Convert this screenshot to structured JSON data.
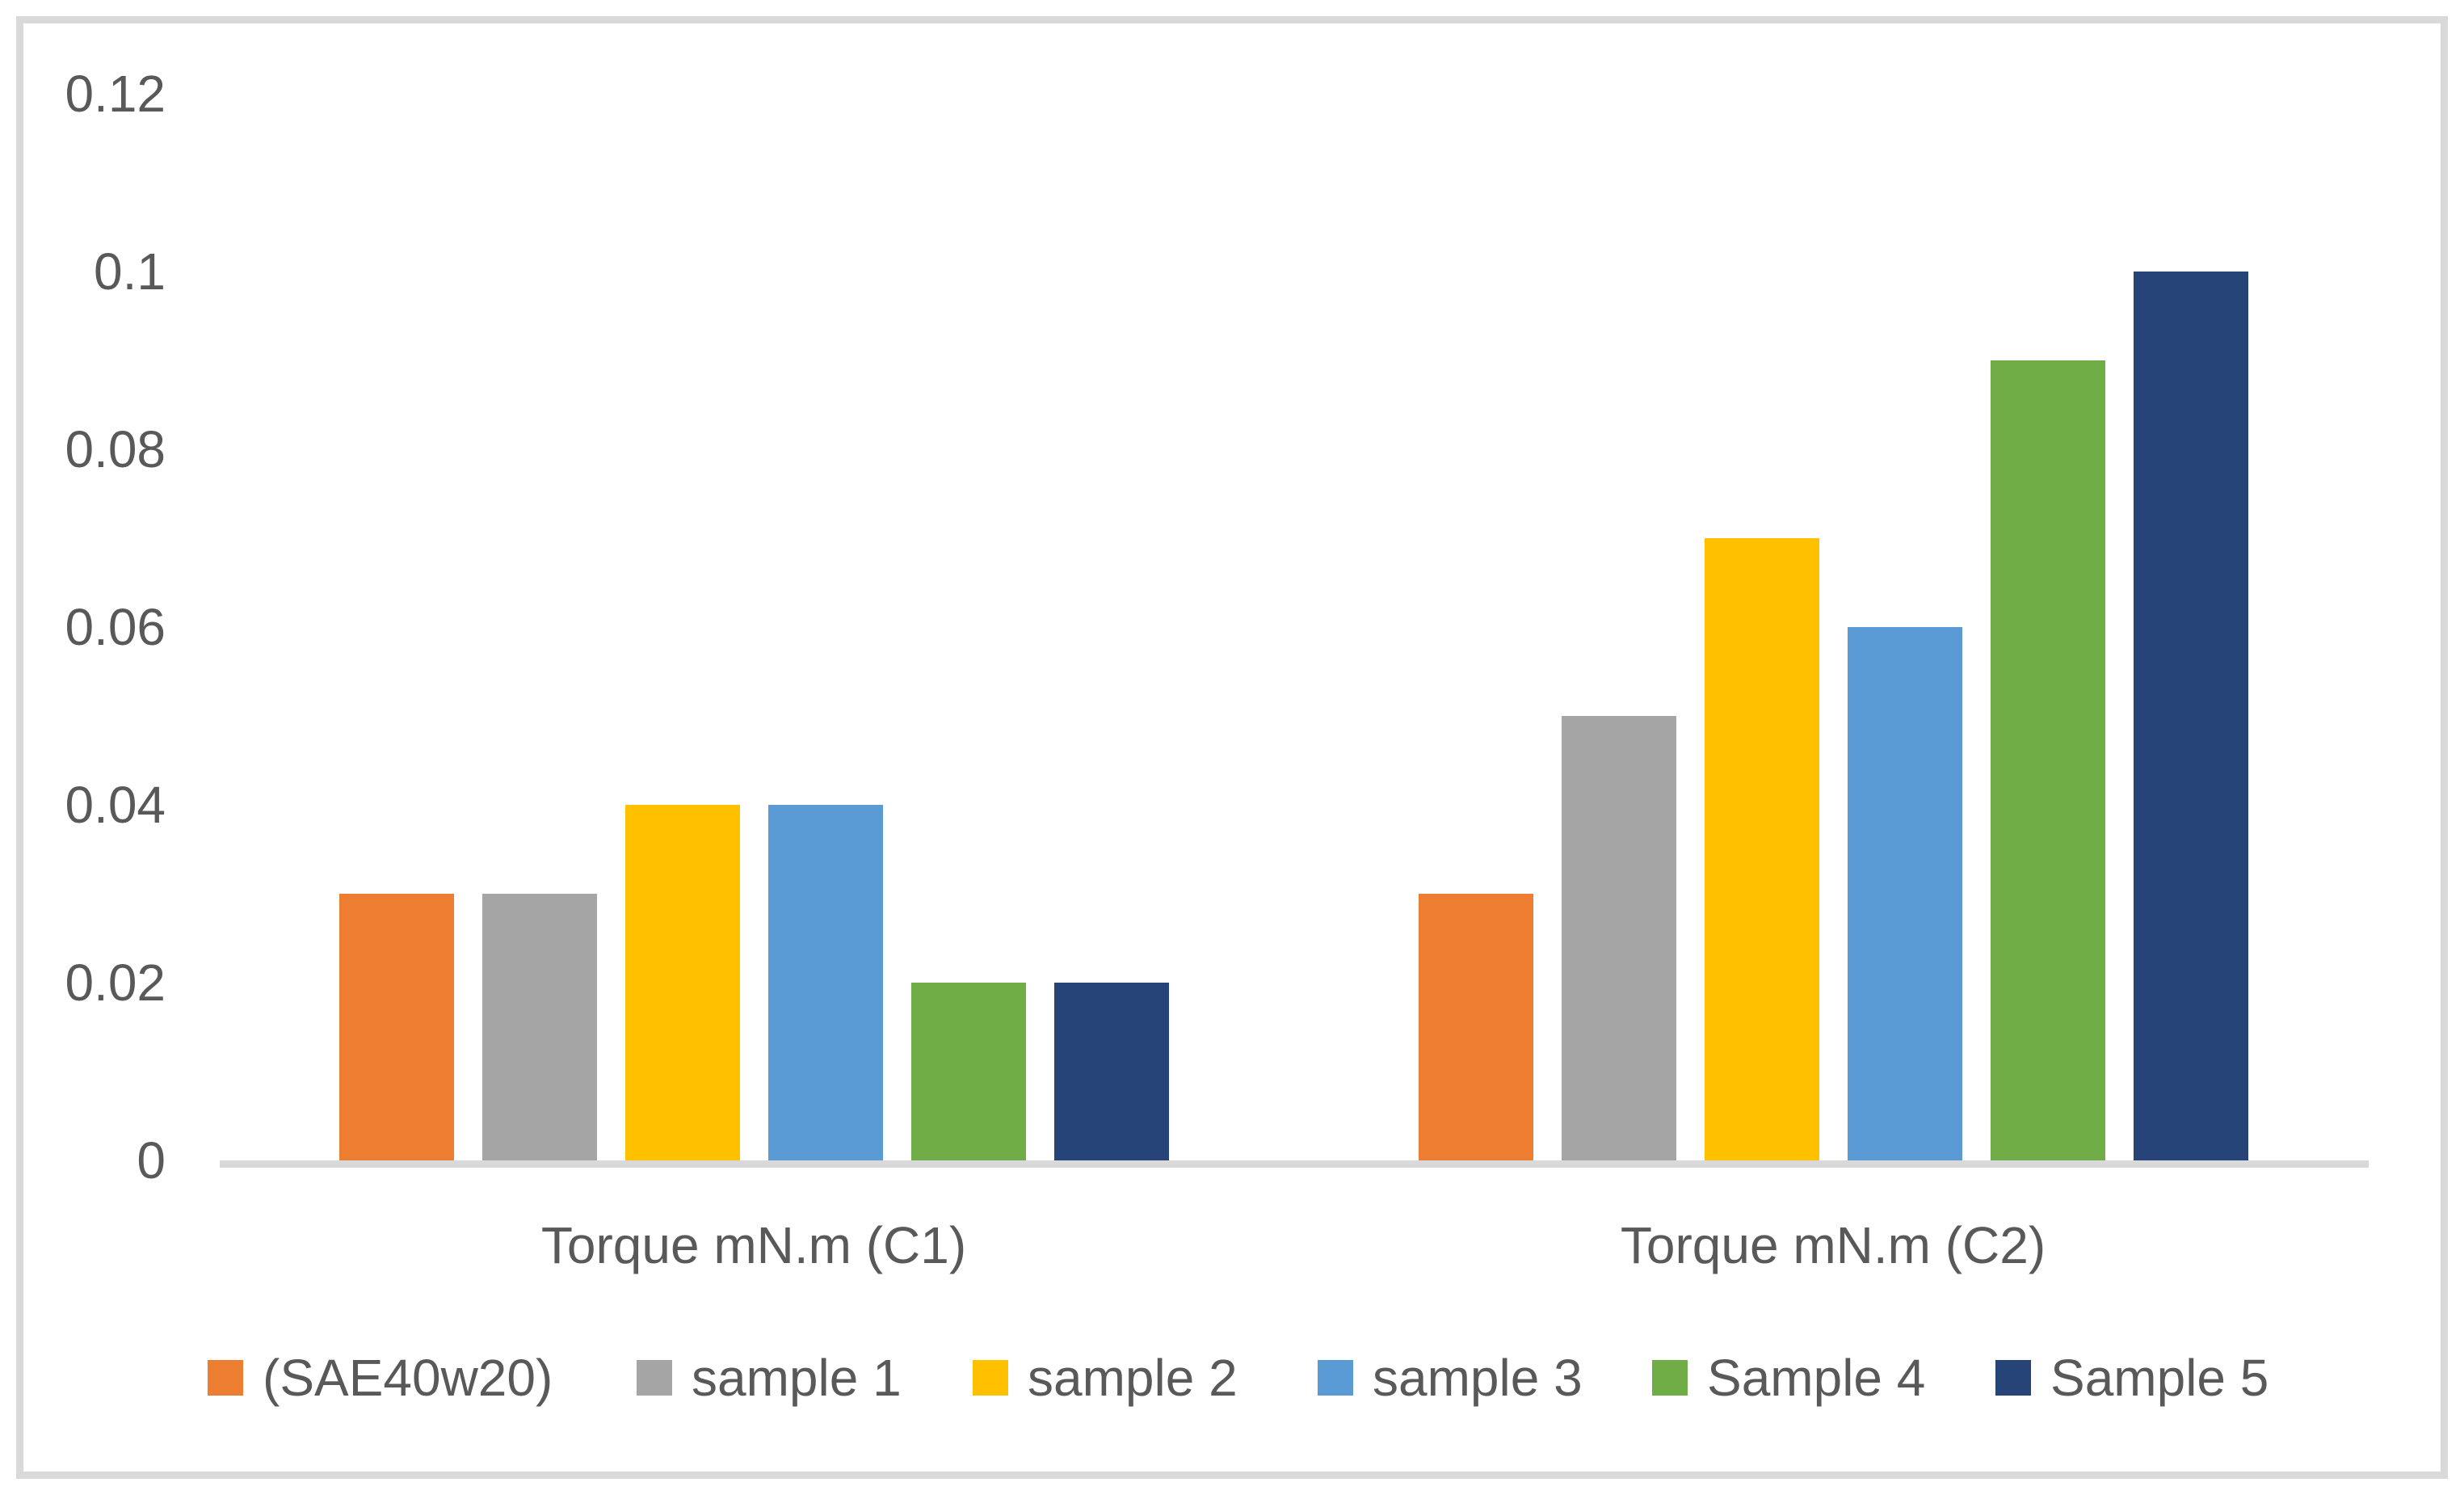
{
  "chart_data": {
    "type": "bar",
    "title": "",
    "xlabel": "",
    "ylabel": "",
    "categories": [
      "Torque mN.m (C1)",
      "Torque mN.m (C2)"
    ],
    "series": [
      {
        "name": "(SAE40w20)",
        "color": "#ED7D31",
        "values": [
          0.03,
          0.03
        ]
      },
      {
        "name": "sample 1",
        "color": "#A5A5A5",
        "values": [
          0.03,
          0.05
        ]
      },
      {
        "name": "sample 2",
        "color": "#FFC000",
        "values": [
          0.04,
          0.07
        ]
      },
      {
        "name": "sample 3",
        "color": "#5B9BD5",
        "values": [
          0.04,
          0.06
        ]
      },
      {
        "name": "Sample 4",
        "color": "#70AD47",
        "values": [
          0.02,
          0.09
        ]
      },
      {
        "name": "Sample 5",
        "color": "#264478",
        "values": [
          0.02,
          0.1
        ]
      }
    ],
    "y_ticks": [
      {
        "label": "0.12",
        "value": 0.12
      },
      {
        "label": "0.1",
        "value": 0.1
      },
      {
        "label": "0.08",
        "value": 0.08
      },
      {
        "label": "0.06",
        "value": 0.06
      },
      {
        "label": "0.04",
        "value": 0.04
      },
      {
        "label": "0.02",
        "value": 0.02
      },
      {
        "label": "0",
        "value": 0.0
      }
    ],
    "ylim": [
      0,
      0.12
    ],
    "grid": false,
    "legend_position": "bottom",
    "colors": {
      "text": "#595959",
      "axis_line": "#D9D9D9",
      "frame_border": "#D9D9D9",
      "background": "#FFFFFF"
    }
  }
}
